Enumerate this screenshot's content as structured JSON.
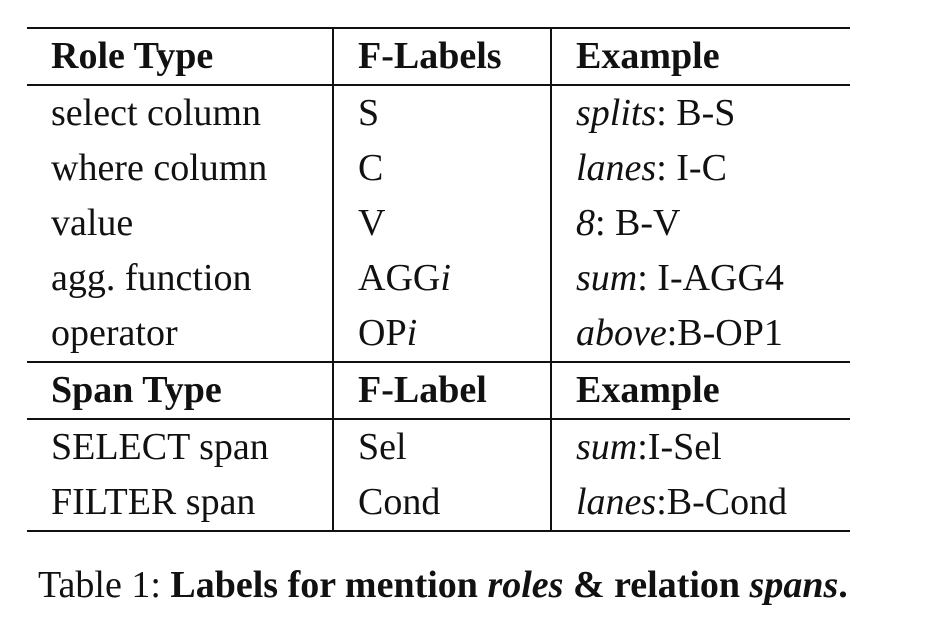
{
  "role_header": {
    "col1": "Role Type",
    "col2": "F-Labels",
    "col3": "Example"
  },
  "role_rows": [
    {
      "type": "select column",
      "label": "S",
      "label_var": "",
      "example_word": "splits",
      "example_tag": ": B-S"
    },
    {
      "type": "where column",
      "label": "C",
      "label_var": "",
      "example_word": "lanes",
      "example_tag": ": I-C"
    },
    {
      "type": "value",
      "label": "V",
      "label_var": "",
      "example_word": "8",
      "example_tag": ": B-V"
    },
    {
      "type": "agg. function",
      "label": "AGG",
      "label_var": "i",
      "example_word": "sum",
      "example_tag": ": I-AGG4"
    },
    {
      "type": "operator",
      "label": "OP",
      "label_var": "i",
      "example_word": "above",
      "example_tag": ":B-OP1"
    }
  ],
  "span_header": {
    "col1": "Span Type",
    "col2": "F-Label",
    "col3": "Example"
  },
  "span_rows": [
    {
      "type": "SELECT span",
      "label": "Sel",
      "example_word": "sum",
      "example_tag": ":I-Sel"
    },
    {
      "type": "FILTER span",
      "label": "Cond",
      "example_word": "lanes",
      "example_tag": ":B-Cond"
    }
  ],
  "caption": {
    "prefix": "Table 1: ",
    "bold_1": "Labels for mention ",
    "italic_1": "roles",
    "bold_2": " & relation ",
    "italic_2": "spans",
    "bold_3": "."
  }
}
